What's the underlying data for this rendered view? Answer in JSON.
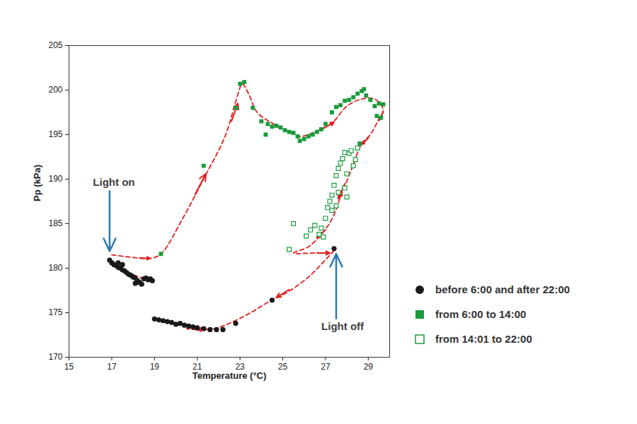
{
  "chart_data": {
    "type": "scatter",
    "xlabel": "Temperature (°C)",
    "ylabel": "Pp (kPa)",
    "xlim": [
      15,
      30
    ],
    "ylim": [
      170,
      205
    ],
    "xticks": [
      15,
      17,
      19,
      21,
      23,
      25,
      27,
      29
    ],
    "yticks": [
      170,
      175,
      180,
      185,
      190,
      195,
      200,
      205
    ],
    "grid": false,
    "legend": "right",
    "series": [
      {
        "name": "before 6:00 and after 22:00",
        "color": "#1a1a1a",
        "marker": "circle",
        "x": [
          16.9,
          17.0,
          17.1,
          17.2,
          17.3,
          17.4,
          17.5,
          17.6,
          17.7,
          17.8,
          17.9,
          18.0,
          18.1,
          18.2,
          18.3,
          18.4,
          18.5,
          18.6,
          18.7,
          18.8,
          18.9,
          17.5,
          17.3,
          18.1,
          19.0,
          19.2,
          19.4,
          19.6,
          19.8,
          20.0,
          20.2,
          20.4,
          20.6,
          20.8,
          21.0,
          21.3,
          21.6,
          21.9,
          22.2,
          22.8,
          24.5,
          27.4
        ],
        "y": [
          180.9,
          180.6,
          180.4,
          180.3,
          180.1,
          180.0,
          179.8,
          179.7,
          179.5,
          179.3,
          179.2,
          179.0,
          178.9,
          178.6,
          178.4,
          178.2,
          178.8,
          178.9,
          178.7,
          178.8,
          178.6,
          180.4,
          180.6,
          178.3,
          174.3,
          174.2,
          174.1,
          174.0,
          173.9,
          173.7,
          173.8,
          173.6,
          173.5,
          173.4,
          173.3,
          173.2,
          173.1,
          173.1,
          173.1,
          173.8,
          176.4,
          182.2
        ]
      },
      {
        "name": "from 6:00 to 14:00",
        "color": "#1a9a3c",
        "marker": "square",
        "x": [
          19.3,
          21.3,
          22.8,
          23.0,
          23.2,
          23.6,
          24.0,
          24.3,
          24.5,
          24.7,
          24.9,
          25.1,
          25.3,
          25.5,
          25.7,
          25.8,
          26.0,
          26.2,
          26.4,
          26.6,
          26.8,
          27.0,
          27.3,
          27.5,
          27.7,
          27.9,
          28.1,
          28.3,
          28.5,
          28.7,
          28.9,
          29.1,
          29.3,
          29.5,
          29.4,
          29.6,
          28.6,
          29.7,
          28.8,
          24.2
        ],
        "y": [
          181.6,
          191.5,
          198.0,
          200.7,
          200.9,
          198.0,
          196.5,
          196.2,
          195.9,
          196.0,
          195.8,
          195.5,
          195.3,
          195.2,
          194.8,
          194.3,
          194.5,
          194.8,
          195.0,
          195.3,
          195.6,
          196.2,
          197.5,
          198.1,
          198.3,
          198.8,
          198.9,
          199.2,
          199.6,
          199.9,
          199.4,
          198.9,
          198.2,
          198.5,
          197.1,
          196.9,
          194.0,
          198.4,
          200.1,
          195.0
        ]
      },
      {
        "name": "from 14:01 to 22:00",
        "color": "#1a9a3c",
        "marker": "open_square",
        "x": [
          25.3,
          25.5,
          26.1,
          26.3,
          26.5,
          26.7,
          26.9,
          27.0,
          27.1,
          27.2,
          27.3,
          27.4,
          27.5,
          27.6,
          27.7,
          27.8,
          27.9,
          28.0,
          28.1,
          28.2,
          28.3,
          28.4,
          28.5,
          27.6,
          27.3,
          26.8,
          27.9,
          27.5,
          28.0
        ],
        "y": [
          182.1,
          185.0,
          183.6,
          184.3,
          184.8,
          183.8,
          183.5,
          185.6,
          186.8,
          187.5,
          188.2,
          189.3,
          190.4,
          191.2,
          191.8,
          192.3,
          189.0,
          190.6,
          192.9,
          193.2,
          191.5,
          192.2,
          193.5,
          188.5,
          186.5,
          184.5,
          193.0,
          187.0,
          188.0
        ]
      }
    ],
    "path": {
      "color": "#e02020",
      "line_style": "dashed",
      "marker": "arrow",
      "x": [
        17.0,
        18.0,
        18.8,
        19.3,
        20.3,
        21.4,
        22.3,
        22.9,
        23.1,
        23.4,
        23.8,
        24.5,
        25.3,
        25.8,
        26.5,
        27.3,
        28.0,
        28.7,
        29.3,
        29.7,
        29.5,
        29.1,
        28.7,
        28.2,
        27.7,
        27.3,
        26.8,
        26.2,
        25.5,
        26.5,
        27.3,
        null,
        27.4,
        26.2,
        25.0,
        24.6,
        23.5,
        22.5,
        21.8,
        21.0,
        20.5,
        null,
        18.5,
        17.8,
        17.0
      ],
      "y": [
        181.5,
        181.2,
        181.1,
        181.6,
        185.5,
        190.5,
        194.8,
        199.5,
        200.7,
        199.6,
        197.5,
        196.3,
        195.3,
        194.8,
        195.3,
        196.3,
        198.2,
        199.0,
        199.0,
        197.8,
        196.8,
        195.0,
        194.0,
        191.0,
        188.0,
        185.5,
        183.8,
        182.4,
        181.7,
        181.7,
        181.7,
        null,
        182.0,
        179.0,
        177.0,
        176.6,
        175.0,
        173.8,
        173.2,
        173.1,
        173.2,
        null,
        178.8,
        179.5,
        180.7
      ],
      "arrows": [
        {
          "x1": 18.3,
          "y1": 181.15,
          "x2": 18.8,
          "y2": 181.1
        },
        {
          "x1": 20.9,
          "y1": 188.3,
          "x2": 21.4,
          "y2": 190.6
        },
        {
          "x1": 22.6,
          "y1": 196.5,
          "x2": 22.9,
          "y2": 198.5
        },
        {
          "x1": 26.9,
          "y1": 195.7,
          "x2": 27.4,
          "y2": 196.4
        },
        {
          "x1": 29.7,
          "y1": 197.5,
          "x2": 29.5,
          "y2": 196.6
        },
        {
          "x1": 29.0,
          "y1": 194.6,
          "x2": 28.7,
          "y2": 193.9
        },
        {
          "x1": 27.9,
          "y1": 189.5,
          "x2": 27.6,
          "y2": 187.8
        },
        {
          "x1": 27.0,
          "y1": 184.3,
          "x2": 26.6,
          "y2": 183.4
        },
        {
          "x1": 26.6,
          "y1": 181.7,
          "x2": 27.2,
          "y2": 181.7
        },
        {
          "x1": 25.3,
          "y1": 177.6,
          "x2": 24.7,
          "y2": 176.7
        },
        {
          "x1": 21.6,
          "y1": 173.15,
          "x2": 21.0,
          "y2": 173.1
        },
        {
          "x1": 17.6,
          "y1": 179.8,
          "x2": 17.1,
          "y2": 180.4
        }
      ]
    },
    "annotations": [
      {
        "text": "Light on",
        "color": "#2a7ab0",
        "text_x": 17.1,
        "text_y": 189.6,
        "x": 16.9,
        "y": 181.9
      },
      {
        "text": "Light off",
        "color": "#2a7ab0",
        "text_x": 27.8,
        "text_y": 173.4,
        "x": 27.5,
        "y": 181.6
      }
    ]
  }
}
